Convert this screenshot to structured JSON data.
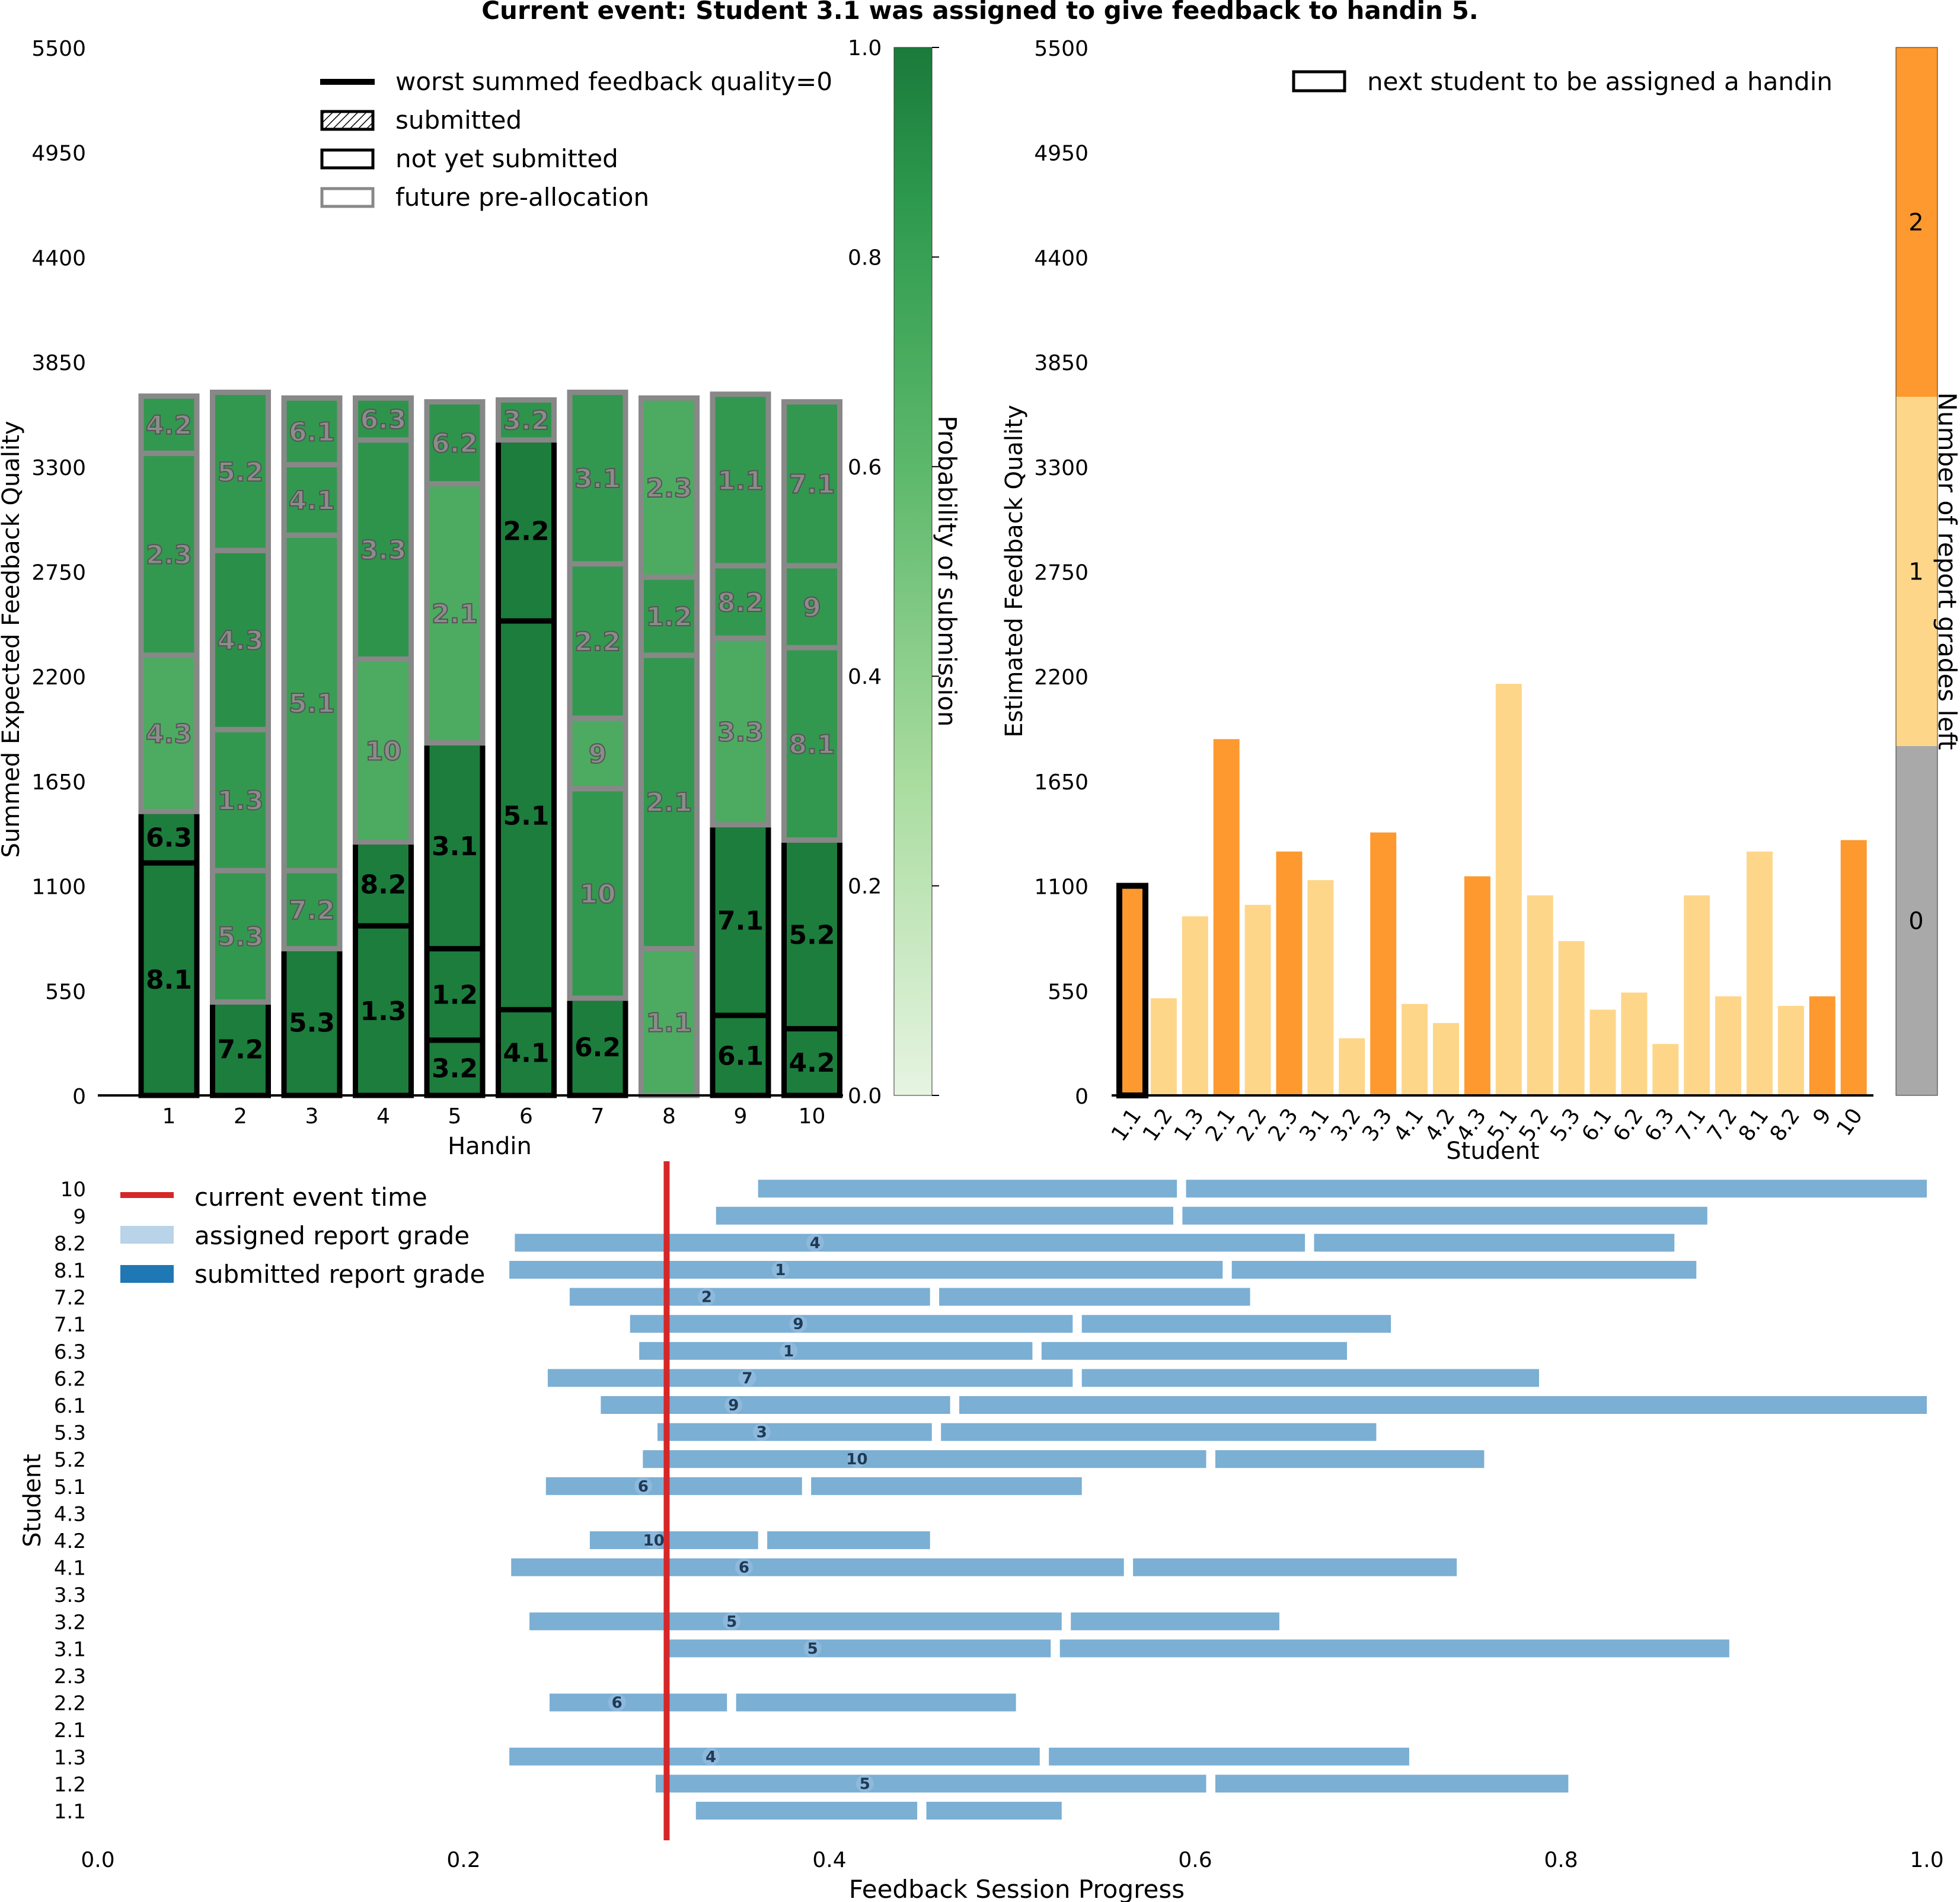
{
  "title": "Current event: Student 3.1 was assigned to give feedback to handin 5.",
  "chart_data": [
    {
      "id": "handin-chart",
      "type": "bar",
      "stacked": true,
      "xlabel": "Handin",
      "ylabel": "Summed Expected Feedback Quality",
      "ylim": [
        0,
        5500
      ],
      "yticks": [
        "0",
        "550",
        "1100",
        "1650",
        "2200",
        "2750",
        "3300",
        "3850",
        "4400",
        "4950",
        "5500"
      ],
      "categories": [
        "1",
        "2",
        "3",
        "4",
        "5",
        "6",
        "7",
        "8",
        "9",
        "10"
      ],
      "legend": {
        "worst_label": "worst summed feedback quality=0",
        "submitted_label": "submitted",
        "not_submitted_label": "not yet submitted",
        "future_label": "future pre-allocation"
      },
      "colorbar": {
        "label": "Probability of submission",
        "ticks": [
          "0.0",
          "0.2",
          "0.4",
          "0.6",
          "0.8",
          "1.0"
        ],
        "range": [
          0,
          1
        ],
        "colors": [
          "#e6f4e1",
          "#a9dc9f",
          "#5cb86b",
          "#238b44",
          "#1a7a3b"
        ]
      },
      "stacks": [
        {
          "handin": "1",
          "segments": [
            {
              "label": "8.1",
              "value": 1220,
              "kind": "not_submitted",
              "prob": 0.97
            },
            {
              "label": "6.3",
              "value": 270,
              "kind": "not_submitted",
              "prob": 0.97
            },
            {
              "label": "4.3",
              "value": 820,
              "kind": "future",
              "prob": 0.67
            },
            {
              "label": "2.3",
              "value": 1060,
              "kind": "future",
              "prob": 0.78
            },
            {
              "label": "4.2",
              "value": 300,
              "kind": "future",
              "prob": 0.78
            }
          ]
        },
        {
          "handin": "2",
          "segments": [
            {
              "label": "7.2",
              "value": 490,
              "kind": "not_submitted",
              "prob": 0.97
            },
            {
              "label": "5.3",
              "value": 690,
              "kind": "future",
              "prob": 0.78
            },
            {
              "label": "1.3",
              "value": 740,
              "kind": "future",
              "prob": 0.78
            },
            {
              "label": "4.3",
              "value": 940,
              "kind": "future",
              "prob": 0.82
            },
            {
              "label": "5.2",
              "value": 830,
              "kind": "future",
              "prob": 0.78
            }
          ]
        },
        {
          "handin": "3",
          "segments": [
            {
              "label": "5.3",
              "value": 770,
              "kind": "not_submitted",
              "prob": 0.97
            },
            {
              "label": "7.2",
              "value": 410,
              "kind": "future",
              "prob": 0.78
            },
            {
              "label": "5.1",
              "value": 1760,
              "kind": "future",
              "prob": 0.75
            },
            {
              "label": "4.1",
              "value": 370,
              "kind": "future",
              "prob": 0.78
            },
            {
              "label": "6.1",
              "value": 350,
              "kind": "future",
              "prob": 0.78
            }
          ]
        },
        {
          "handin": "4",
          "segments": [
            {
              "label": "1.3",
              "value": 890,
              "kind": "not_submitted",
              "prob": 0.97
            },
            {
              "label": "8.2",
              "value": 440,
              "kind": "not_submitted",
              "prob": 0.97
            },
            {
              "label": "10",
              "value": 960,
              "kind": "future",
              "prob": 0.67
            },
            {
              "label": "3.3",
              "value": 1150,
              "kind": "future",
              "prob": 0.8
            },
            {
              "label": "6.3",
              "value": 220,
              "kind": "future",
              "prob": 0.8
            }
          ]
        },
        {
          "handin": "5",
          "segments": [
            {
              "label": "3.2",
              "value": 290,
              "kind": "not_submitted",
              "prob": 0.97
            },
            {
              "label": "1.2",
              "value": 480,
              "kind": "not_submitted",
              "prob": 0.97
            },
            {
              "label": "3.1",
              "value": 1080,
              "kind": "not_submitted",
              "prob": 0.97
            },
            {
              "label": "2.1",
              "value": 1360,
              "kind": "future",
              "prob": 0.67
            },
            {
              "label": "6.2",
              "value": 430,
              "kind": "future",
              "prob": 0.8
            }
          ]
        },
        {
          "handin": "6",
          "segments": [
            {
              "label": "4.1",
              "value": 450,
              "kind": "not_submitted",
              "prob": 0.97
            },
            {
              "label": "5.1",
              "value": 2040,
              "kind": "not_submitted",
              "prob": 0.97
            },
            {
              "label": "2.2",
              "value": 950,
              "kind": "not_submitted",
              "prob": 0.97
            },
            {
              "label": "3.2",
              "value": 210,
              "kind": "future",
              "prob": 0.8
            }
          ]
        },
        {
          "handin": "7",
          "segments": [
            {
              "label": "6.2",
              "value": 510,
              "kind": "not_submitted",
              "prob": 0.97
            },
            {
              "label": "10",
              "value": 1100,
              "kind": "future",
              "prob": 0.78
            },
            {
              "label": "9",
              "value": 370,
              "kind": "future",
              "prob": 0.67
            },
            {
              "label": "2.2",
              "value": 810,
              "kind": "future",
              "prob": 0.78
            },
            {
              "label": "3.1",
              "value": 900,
              "kind": "future",
              "prob": 0.78
            }
          ]
        },
        {
          "handin": "8",
          "segments": [
            {
              "label": "1.1",
              "value": 770,
              "kind": "future",
              "prob": 0.67
            },
            {
              "label": "2.1",
              "value": 1540,
              "kind": "future",
              "prob": 0.78
            },
            {
              "label": "1.2",
              "value": 410,
              "kind": "future",
              "prob": 0.78
            },
            {
              "label": "2.3",
              "value": 940,
              "kind": "future",
              "prob": 0.67
            }
          ]
        },
        {
          "handin": "9",
          "segments": [
            {
              "label": "6.1",
              "value": 420,
              "kind": "not_submitted",
              "prob": 0.97
            },
            {
              "label": "7.1",
              "value": 1000,
              "kind": "not_submitted",
              "prob": 0.97
            },
            {
              "label": "3.3",
              "value": 980,
              "kind": "future",
              "prob": 0.67
            },
            {
              "label": "8.2",
              "value": 380,
              "kind": "future",
              "prob": 0.78
            },
            {
              "label": "1.1",
              "value": 900,
              "kind": "future",
              "prob": 0.78
            }
          ]
        },
        {
          "handin": "10",
          "segments": [
            {
              "label": "4.2",
              "value": 350,
              "kind": "not_submitted",
              "prob": 0.97
            },
            {
              "label": "5.2",
              "value": 990,
              "kind": "not_submitted",
              "prob": 0.97
            },
            {
              "label": "8.1",
              "value": 1010,
              "kind": "future",
              "prob": 0.78
            },
            {
              "label": "9",
              "value": 430,
              "kind": "future",
              "prob": 0.78
            },
            {
              "label": "7.1",
              "value": 860,
              "kind": "future",
              "prob": 0.78
            }
          ]
        }
      ]
    },
    {
      "id": "student-chart",
      "type": "bar",
      "xlabel": "Student",
      "ylabel": "Estimated Feedback Quality",
      "ylim": [
        0,
        5500
      ],
      "yticks": [
        "0",
        "550",
        "1100",
        "1650",
        "2200",
        "2750",
        "3300",
        "3850",
        "4400",
        "4950",
        "5500"
      ],
      "legend": {
        "next_label": "next student to be assigned a handin"
      },
      "highlight": "1.1",
      "colorbar": {
        "label": "Number of report grades left",
        "ticks": [
          "0",
          "1",
          "2"
        ],
        "colors": [
          "#a9a9a9",
          "#fed68a",
          "#fd992f"
        ]
      },
      "categories": [
        "1.1",
        "1.2",
        "1.3",
        "2.1",
        "2.2",
        "2.3",
        "3.1",
        "3.2",
        "3.3",
        "4.1",
        "4.2",
        "4.3",
        "5.1",
        "5.2",
        "5.3",
        "6.1",
        "6.2",
        "6.3",
        "7.1",
        "7.2",
        "8.1",
        "8.2",
        "9",
        "10"
      ],
      "values": [
        1100,
        510,
        940,
        1870,
        1000,
        1280,
        1130,
        300,
        1380,
        480,
        380,
        1150,
        2160,
        1050,
        810,
        450,
        540,
        270,
        1050,
        520,
        1280,
        470,
        520,
        1340
      ],
      "grades_left": [
        2,
        1,
        1,
        2,
        1,
        2,
        1,
        1,
        2,
        1,
        1,
        2,
        1,
        1,
        1,
        1,
        1,
        1,
        1,
        1,
        1,
        1,
        2,
        2
      ]
    },
    {
      "id": "timeline-chart",
      "type": "gantt",
      "xlabel": "Feedback Session Progress",
      "ylabel": "Student",
      "xlim": [
        0,
        1
      ],
      "xticks": [
        "0.0",
        "0.2",
        "0.4",
        "0.6",
        "0.8",
        "1.0"
      ],
      "current_time": 0.311,
      "legend": {
        "current_label": "current event time",
        "assigned_label": "assigned report grade",
        "submitted_label": "submitted report grade"
      },
      "colors": {
        "current": "#d62728",
        "assigned": "#b9d3e8",
        "submitted": "#1f77b4",
        "bar": "#7bafd4"
      },
      "rows": [
        {
          "student": "1.1",
          "segments": [
            [
              0.327,
              0.448
            ],
            [
              0.453,
              0.527
            ]
          ]
        },
        {
          "student": "1.2",
          "segments": [
            [
              0.305,
              0.606,
              "5"
            ],
            [
              0.611,
              0.804
            ]
          ]
        },
        {
          "student": "1.3",
          "segments": [
            [
              0.225,
              0.515,
              "4"
            ],
            [
              0.52,
              0.717
            ]
          ]
        },
        {
          "student": "2.1",
          "segments": []
        },
        {
          "student": "2.2",
          "segments": [
            [
              0.247,
              0.344,
              "6"
            ],
            [
              0.349,
              0.502
            ]
          ]
        },
        {
          "student": "2.3",
          "segments": []
        },
        {
          "student": "3.1",
          "segments": [
            [
              0.311,
              0.521,
              "5"
            ],
            [
              0.526,
              0.892
            ]
          ]
        },
        {
          "student": "3.2",
          "segments": [
            [
              0.236,
              0.527,
              "5"
            ],
            [
              0.532,
              0.646
            ]
          ]
        },
        {
          "student": "3.3",
          "segments": []
        },
        {
          "student": "4.1",
          "segments": [
            [
              0.226,
              0.561,
              "6"
            ],
            [
              0.566,
              0.743
            ]
          ]
        },
        {
          "student": "4.2",
          "segments": [
            [
              0.269,
              0.361,
              "10"
            ],
            [
              0.366,
              0.455
            ]
          ]
        },
        {
          "student": "4.3",
          "segments": []
        },
        {
          "student": "5.1",
          "segments": [
            [
              0.245,
              0.385,
              "6"
            ],
            [
              0.39,
              0.538
            ]
          ]
        },
        {
          "student": "5.2",
          "segments": [
            [
              0.298,
              0.606,
              "10"
            ],
            [
              0.611,
              0.758
            ]
          ]
        },
        {
          "student": "5.3",
          "segments": [
            [
              0.306,
              0.456,
              "3"
            ],
            [
              0.461,
              0.699
            ]
          ]
        },
        {
          "student": "6.1",
          "segments": [
            [
              0.275,
              0.466,
              "9"
            ],
            [
              0.471,
              1.0
            ]
          ]
        },
        {
          "student": "6.2",
          "segments": [
            [
              0.246,
              0.533,
              "7"
            ],
            [
              0.538,
              0.788
            ]
          ]
        },
        {
          "student": "6.3",
          "segments": [
            [
              0.296,
              0.511,
              "1"
            ],
            [
              0.516,
              0.683
            ]
          ]
        },
        {
          "student": "7.1",
          "segments": [
            [
              0.291,
              0.533,
              "9"
            ],
            [
              0.538,
              0.707
            ]
          ]
        },
        {
          "student": "7.2",
          "segments": [
            [
              0.258,
              0.455,
              "2"
            ],
            [
              0.46,
              0.63
            ]
          ]
        },
        {
          "student": "8.1",
          "segments": [
            [
              0.225,
              0.615,
              "1"
            ],
            [
              0.62,
              0.874
            ]
          ]
        },
        {
          "student": "8.2",
          "segments": [
            [
              0.228,
              0.66,
              "4"
            ],
            [
              0.665,
              0.862
            ]
          ]
        },
        {
          "student": "9",
          "segments": [
            [
              0.338,
              0.588
            ],
            [
              0.593,
              0.88
            ]
          ]
        },
        {
          "student": "10",
          "segments": [
            [
              0.361,
              0.59
            ],
            [
              0.595,
              1.0
            ]
          ]
        }
      ]
    }
  ]
}
